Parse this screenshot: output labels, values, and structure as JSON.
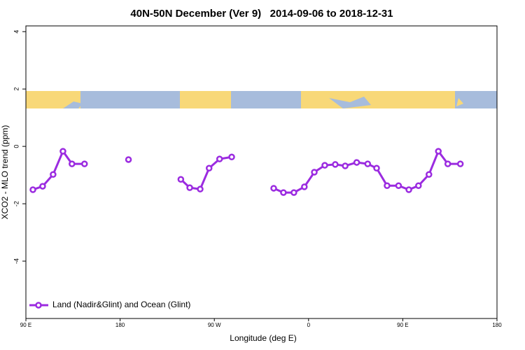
{
  "chart_data": {
    "type": "line",
    "title": "40N-50N December (Ver 9)   2014-09-06 to 2018-12-31",
    "x_label": "Longitude (deg E)",
    "y_label": "XCO2 - MLO trend (ppm)",
    "x": [
      96.7,
      106,
      116,
      125.4,
      134,
      146,
      167,
      188,
      213,
      238,
      246.5,
      256.5,
      265,
      275,
      286.6,
      306,
      326.7,
      336,
      346,
      356,
      365.5,
      375.5,
      385.5,
      395,
      406,
      416.5,
      425,
      435,
      446,
      455.8,
      465,
      475,
      484,
      493,
      505
    ],
    "series": [
      {
        "name": "Land (Nadir&Glint) and Ocean (Glint)",
        "color": "#9b2be0",
        "values": [
          -1.51,
          -1.39,
          -0.98,
          -0.17,
          -0.61,
          -0.61,
          null,
          -0.46,
          null,
          -1.15,
          -1.44,
          -1.49,
          -0.76,
          -0.44,
          -0.37,
          null,
          -1.46,
          -1.61,
          -1.61,
          -1.41,
          -0.9,
          -0.66,
          -0.63,
          -0.68,
          -0.56,
          -0.61,
          -0.76,
          -1.37,
          -1.37,
          -1.51,
          -1.37,
          -0.98,
          -0.17,
          -0.61,
          -0.61
        ]
      }
    ],
    "xlim": [
      90,
      540
    ],
    "xticks": [
      {
        "value": 90,
        "label": "90 E"
      },
      {
        "value": 180,
        "label": "180"
      },
      {
        "value": 270,
        "label": "90 W"
      },
      {
        "value": 360,
        "label": "0"
      },
      {
        "value": 450,
        "label": "90 E"
      },
      {
        "value": 540,
        "label": "180"
      }
    ],
    "ylim": [
      -6,
      4.2
    ],
    "yticks": [
      -4,
      -2,
      0,
      2,
      4
    ],
    "legend": "bottom-left"
  }
}
